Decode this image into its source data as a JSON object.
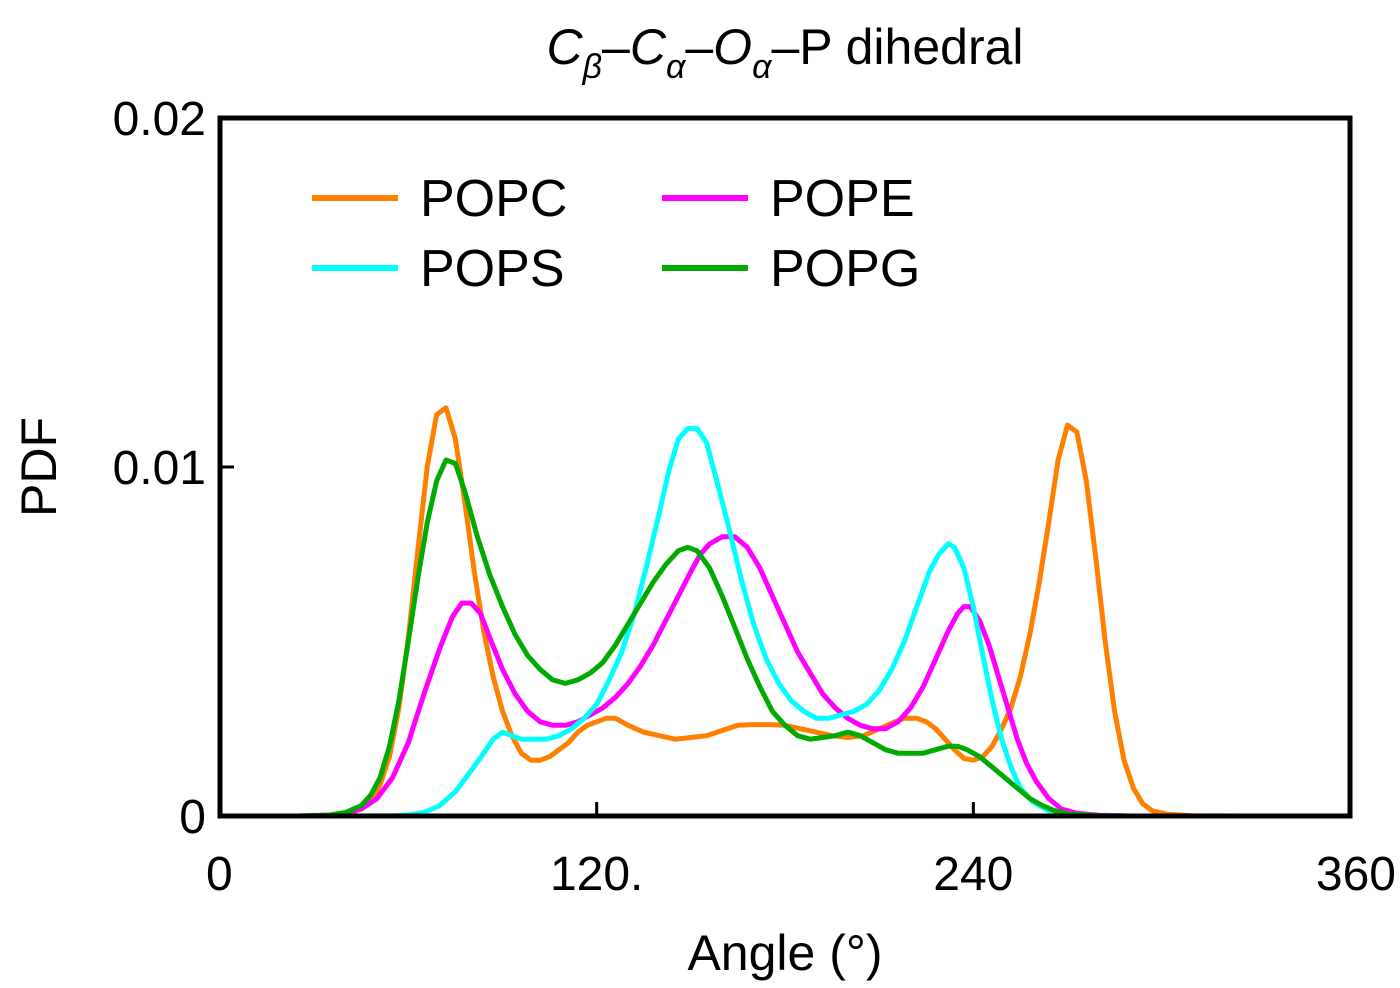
{
  "chart_data": {
    "type": "line",
    "title": {
      "c1": "C",
      "s1": "β",
      "c2": "C",
      "s2": "α",
      "c3": "O",
      "s3": "α",
      "tail": "P dihedral"
    },
    "xlabel": "Angle (°)",
    "ylabel": "PDF",
    "xlim": [
      0,
      360
    ],
    "ylim": [
      0,
      0.02
    ],
    "xticks": [
      {
        "value": 0,
        "label": "0"
      },
      {
        "value": 120,
        "label": "120."
      },
      {
        "value": 240,
        "label": "240"
      },
      {
        "value": 360,
        "label": "360"
      }
    ],
    "yticks": [
      {
        "value": 0,
        "label": "0"
      },
      {
        "value": 0.01,
        "label": "0.01"
      },
      {
        "value": 0.02,
        "label": "0.02"
      }
    ],
    "grid": false,
    "legend_position": "top-left",
    "series": [
      {
        "name": "POPC",
        "color": "#ff8000",
        "points": [
          [
            25,
            0
          ],
          [
            35,
            1e-05
          ],
          [
            40,
            5e-05
          ],
          [
            45,
            0.0002
          ],
          [
            48,
            0.0004
          ],
          [
            51,
            0.0009
          ],
          [
            54,
            0.0017
          ],
          [
            57,
            0.0031
          ],
          [
            60,
            0.0051
          ],
          [
            63,
            0.0076
          ],
          [
            66,
            0.01
          ],
          [
            69,
            0.0115
          ],
          [
            72,
            0.0117
          ],
          [
            75,
            0.0108
          ],
          [
            78,
            0.009
          ],
          [
            81,
            0.007
          ],
          [
            84,
            0.0053
          ],
          [
            87,
            0.004
          ],
          [
            90,
            0.003
          ],
          [
            93,
            0.0023
          ],
          [
            96,
            0.0018
          ],
          [
            99,
            0.0016
          ],
          [
            102,
            0.0016
          ],
          [
            105,
            0.0017
          ],
          [
            108,
            0.0019
          ],
          [
            111,
            0.0021
          ],
          [
            114,
            0.0024
          ],
          [
            117,
            0.0026
          ],
          [
            120,
            0.0027
          ],
          [
            123,
            0.0028
          ],
          [
            126,
            0.0028
          ],
          [
            130,
            0.0026
          ],
          [
            135,
            0.0024
          ],
          [
            140,
            0.0023
          ],
          [
            145,
            0.0022
          ],
          [
            150,
            0.00225
          ],
          [
            155,
            0.0023
          ],
          [
            160,
            0.00245
          ],
          [
            165,
            0.0026
          ],
          [
            170,
            0.00262
          ],
          [
            175,
            0.00262
          ],
          [
            180,
            0.0026
          ],
          [
            185,
            0.0025
          ],
          [
            190,
            0.0024
          ],
          [
            195,
            0.0023
          ],
          [
            200,
            0.00225
          ],
          [
            205,
            0.0023
          ],
          [
            210,
            0.0025
          ],
          [
            215,
            0.0027
          ],
          [
            218,
            0.0028
          ],
          [
            222,
            0.0028
          ],
          [
            225,
            0.0027
          ],
          [
            228,
            0.0025
          ],
          [
            231,
            0.0022
          ],
          [
            234,
            0.0019
          ],
          [
            237,
            0.00165
          ],
          [
            240,
            0.0016
          ],
          [
            243,
            0.0017
          ],
          [
            246,
            0.002
          ],
          [
            249,
            0.0025
          ],
          [
            252,
            0.0031
          ],
          [
            255,
            0.004
          ],
          [
            258,
            0.0052
          ],
          [
            261,
            0.0067
          ],
          [
            264,
            0.0084
          ],
          [
            267,
            0.0102
          ],
          [
            270,
            0.0112
          ],
          [
            273,
            0.011
          ],
          [
            276,
            0.0096
          ],
          [
            279,
            0.0074
          ],
          [
            282,
            0.005
          ],
          [
            285,
            0.003
          ],
          [
            288,
            0.0016
          ],
          [
            291,
            0.0008
          ],
          [
            294,
            0.00035
          ],
          [
            297,
            0.00015
          ],
          [
            302,
            5e-05
          ],
          [
            310,
            1e-05
          ],
          [
            325,
            0
          ]
        ]
      },
      {
        "name": "POPE",
        "color": "#ff00ff",
        "points": [
          [
            25,
            0
          ],
          [
            35,
            2e-05
          ],
          [
            40,
            8e-05
          ],
          [
            45,
            0.0002
          ],
          [
            50,
            0.0005
          ],
          [
            55,
            0.0011
          ],
          [
            60,
            0.0021
          ],
          [
            65,
            0.0035
          ],
          [
            70,
            0.0048
          ],
          [
            74,
            0.0057
          ],
          [
            77,
            0.0061
          ],
          [
            80,
            0.0061
          ],
          [
            83,
            0.0058
          ],
          [
            86,
            0.0051
          ],
          [
            90,
            0.0042
          ],
          [
            94,
            0.0035
          ],
          [
            98,
            0.003
          ],
          [
            102,
            0.0027
          ],
          [
            106,
            0.0026
          ],
          [
            110,
            0.0026
          ],
          [
            114,
            0.0027
          ],
          [
            118,
            0.0029
          ],
          [
            122,
            0.0031
          ],
          [
            126,
            0.0034
          ],
          [
            130,
            0.0038
          ],
          [
            134,
            0.0043
          ],
          [
            138,
            0.0049
          ],
          [
            142,
            0.0056
          ],
          [
            146,
            0.0063
          ],
          [
            150,
            0.007
          ],
          [
            153,
            0.0075
          ],
          [
            156,
            0.0078
          ],
          [
            160,
            0.008
          ],
          [
            164,
            0.008
          ],
          [
            168,
            0.0077
          ],
          [
            172,
            0.0071
          ],
          [
            176,
            0.0063
          ],
          [
            180,
            0.0055
          ],
          [
            184,
            0.0047
          ],
          [
            188,
            0.0041
          ],
          [
            192,
            0.0035
          ],
          [
            196,
            0.0031
          ],
          [
            200,
            0.0028
          ],
          [
            204,
            0.0026
          ],
          [
            208,
            0.0025
          ],
          [
            212,
            0.0025
          ],
          [
            216,
            0.0027
          ],
          [
            220,
            0.0031
          ],
          [
            224,
            0.0037
          ],
          [
            228,
            0.0045
          ],
          [
            232,
            0.0053
          ],
          [
            235,
            0.0058
          ],
          [
            237,
            0.006
          ],
          [
            239,
            0.006
          ],
          [
            242,
            0.0056
          ],
          [
            245,
            0.0049
          ],
          [
            248,
            0.004
          ],
          [
            251,
            0.0031
          ],
          [
            254,
            0.0022
          ],
          [
            257,
            0.0015
          ],
          [
            260,
            0.001
          ],
          [
            264,
            0.0005
          ],
          [
            268,
            0.0002
          ],
          [
            273,
            8e-05
          ],
          [
            280,
            2e-05
          ],
          [
            290,
            0
          ]
        ]
      },
      {
        "name": "POPS",
        "color": "#00ffff",
        "points": [
          [
            40,
            0
          ],
          [
            55,
            1e-05
          ],
          [
            60,
            3e-05
          ],
          [
            65,
            0.0001
          ],
          [
            70,
            0.0003
          ],
          [
            75,
            0.0007
          ],
          [
            80,
            0.0013
          ],
          [
            84,
            0.0018
          ],
          [
            87,
            0.0022
          ],
          [
            90,
            0.0024
          ],
          [
            93,
            0.0023
          ],
          [
            96,
            0.0022
          ],
          [
            100,
            0.0022
          ],
          [
            104,
            0.0022
          ],
          [
            108,
            0.0023
          ],
          [
            112,
            0.0025
          ],
          [
            116,
            0.0028
          ],
          [
            120,
            0.0032
          ],
          [
            124,
            0.0039
          ],
          [
            128,
            0.0047
          ],
          [
            132,
            0.0058
          ],
          [
            136,
            0.0072
          ],
          [
            140,
            0.0087
          ],
          [
            143,
            0.0099
          ],
          [
            146,
            0.0108
          ],
          [
            149,
            0.0111
          ],
          [
            152,
            0.0111
          ],
          [
            155,
            0.0107
          ],
          [
            158,
            0.0097
          ],
          [
            162,
            0.0083
          ],
          [
            166,
            0.0068
          ],
          [
            170,
            0.0055
          ],
          [
            174,
            0.0045
          ],
          [
            178,
            0.0038
          ],
          [
            182,
            0.0033
          ],
          [
            186,
            0.003
          ],
          [
            190,
            0.0028
          ],
          [
            194,
            0.0028
          ],
          [
            198,
            0.0029
          ],
          [
            202,
            0.003
          ],
          [
            206,
            0.0032
          ],
          [
            210,
            0.0036
          ],
          [
            214,
            0.0042
          ],
          [
            218,
            0.005
          ],
          [
            222,
            0.006
          ],
          [
            226,
            0.007
          ],
          [
            229,
            0.0075
          ],
          [
            232,
            0.0078
          ],
          [
            234,
            0.0077
          ],
          [
            237,
            0.0071
          ],
          [
            240,
            0.006
          ],
          [
            243,
            0.0046
          ],
          [
            246,
            0.0033
          ],
          [
            249,
            0.0022
          ],
          [
            252,
            0.0014
          ],
          [
            255,
            0.0008
          ],
          [
            259,
            0.0004
          ],
          [
            264,
            0.00015
          ],
          [
            270,
            5e-05
          ],
          [
            280,
            1e-05
          ],
          [
            290,
            0
          ]
        ]
      },
      {
        "name": "POPG",
        "color": "#00aa00",
        "points": [
          [
            25,
            0
          ],
          [
            35,
            3e-05
          ],
          [
            40,
            0.0001
          ],
          [
            45,
            0.0003
          ],
          [
            48,
            0.0006
          ],
          [
            51,
            0.0011
          ],
          [
            54,
            0.002
          ],
          [
            57,
            0.0033
          ],
          [
            60,
            0.005
          ],
          [
            63,
            0.0068
          ],
          [
            66,
            0.0084
          ],
          [
            69,
            0.0096
          ],
          [
            72,
            0.0102
          ],
          [
            75,
            0.0101
          ],
          [
            78,
            0.0093
          ],
          [
            82,
            0.008
          ],
          [
            86,
            0.0069
          ],
          [
            90,
            0.006
          ],
          [
            94,
            0.0052
          ],
          [
            98,
            0.0046
          ],
          [
            102,
            0.0042
          ],
          [
            106,
            0.0039
          ],
          [
            110,
            0.0038
          ],
          [
            114,
            0.0039
          ],
          [
            118,
            0.0041
          ],
          [
            122,
            0.0044
          ],
          [
            126,
            0.0049
          ],
          [
            130,
            0.0055
          ],
          [
            134,
            0.0061
          ],
          [
            138,
            0.0067
          ],
          [
            142,
            0.0072
          ],
          [
            146,
            0.0076
          ],
          [
            149,
            0.0077
          ],
          [
            152,
            0.0076
          ],
          [
            156,
            0.0071
          ],
          [
            160,
            0.0063
          ],
          [
            164,
            0.0054
          ],
          [
            168,
            0.0045
          ],
          [
            172,
            0.0037
          ],
          [
            176,
            0.003
          ],
          [
            180,
            0.0026
          ],
          [
            184,
            0.0023
          ],
          [
            188,
            0.0022
          ],
          [
            192,
            0.00225
          ],
          [
            196,
            0.0023
          ],
          [
            200,
            0.0024
          ],
          [
            204,
            0.0023
          ],
          [
            208,
            0.0021
          ],
          [
            212,
            0.0019
          ],
          [
            216,
            0.0018
          ],
          [
            220,
            0.0018
          ],
          [
            224,
            0.0018
          ],
          [
            228,
            0.0019
          ],
          [
            232,
            0.002
          ],
          [
            235,
            0.002
          ],
          [
            238,
            0.0019
          ],
          [
            242,
            0.0017
          ],
          [
            246,
            0.0014
          ],
          [
            250,
            0.0011
          ],
          [
            254,
            0.0008
          ],
          [
            258,
            0.0005
          ],
          [
            262,
            0.0003
          ],
          [
            266,
            0.00015
          ],
          [
            271,
            5e-05
          ],
          [
            280,
            1e-05
          ],
          [
            290,
            0
          ]
        ]
      }
    ]
  }
}
